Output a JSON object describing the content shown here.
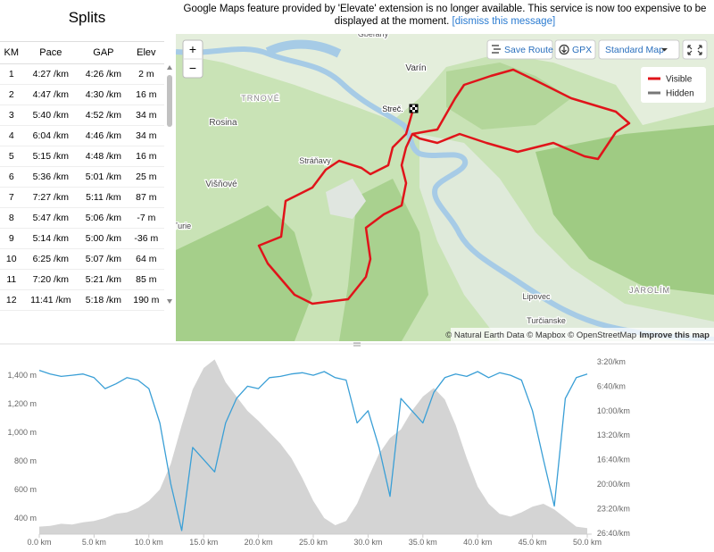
{
  "splits": {
    "title": "Splits",
    "columns": [
      "KM",
      "Pace",
      "GAP",
      "Elev"
    ],
    "rows": [
      [
        "1",
        "4:27 /km",
        "4:26 /km",
        "2 m"
      ],
      [
        "2",
        "4:47 /km",
        "4:30 /km",
        "16 m"
      ],
      [
        "3",
        "5:40 /km",
        "4:52 /km",
        "34 m"
      ],
      [
        "4",
        "6:04 /km",
        "4:46 /km",
        "34 m"
      ],
      [
        "5",
        "5:15 /km",
        "4:48 /km",
        "16 m"
      ],
      [
        "6",
        "5:36 /km",
        "5:01 /km",
        "25 m"
      ],
      [
        "7",
        "7:27 /km",
        "5:11 /km",
        "87 m"
      ],
      [
        "8",
        "5:47 /km",
        "5:06 /km",
        "-7 m"
      ],
      [
        "9",
        "5:14 /km",
        "5:00 /km",
        "-36 m"
      ],
      [
        "10",
        "6:25 /km",
        "5:07 /km",
        "64 m"
      ],
      [
        "11",
        "7:20 /km",
        "5:21 /km",
        "85 m"
      ],
      [
        "12",
        "11:41 /km",
        "5:18 /km",
        "190 m"
      ]
    ]
  },
  "banner": {
    "message": "Google Maps feature provided by 'Elevate' extension is no longer available. This service is now too expensive to be displayed at the moment.",
    "link": "[dismiss this message]"
  },
  "map": {
    "zoom_in": "+",
    "zoom_out": "−",
    "save_route": "Save Route",
    "gpx": "GPX",
    "style": "Standard Map",
    "legend": [
      {
        "name": "Visible",
        "color": "#e0141a"
      },
      {
        "name": "Hidden",
        "color": "#777777"
      }
    ],
    "places": [
      "Gbeľany",
      "Varín",
      "TRNOVÉ",
      "Rosina",
      "Streč.",
      "Stráňavy",
      "Višňové",
      "Turie",
      "Lipovec",
      "Turčianske",
      "JAROLÍM"
    ],
    "attribution": "© Natural Earth Data © Mapbox © OpenStreetMap",
    "attribution_link": "Improve this map"
  },
  "chart_data": {
    "type": "area_line",
    "x": [
      0,
      1,
      2,
      3,
      4,
      5,
      6,
      7,
      8,
      9,
      10,
      11,
      12,
      13,
      14,
      15,
      16,
      17,
      18,
      19,
      20,
      21,
      22,
      23,
      24,
      25,
      26,
      27,
      28,
      29,
      30,
      31,
      32,
      33,
      34,
      35,
      36,
      37,
      38,
      39,
      40,
      41,
      42,
      43,
      44,
      45,
      46,
      47,
      48,
      49,
      50
    ],
    "series": [
      {
        "style": "area",
        "color": "#d4d4d4",
        "values": [
          340,
          345,
          360,
          355,
          370,
          380,
          400,
          430,
          440,
          470,
          520,
          600,
          780,
          1050,
          1300,
          1450,
          1510,
          1350,
          1250,
          1150,
          1080,
          1000,
          920,
          820,
          680,
          520,
          400,
          350,
          380,
          500,
          680,
          850,
          960,
          1020,
          1150,
          1250,
          1310,
          1230,
          1050,
          820,
          620,
          500,
          430,
          410,
          440,
          480,
          500,
          460,
          400,
          340,
          330
        ]
      },
      {
        "style": "line",
        "color": "#3a9fd6",
        "axis": "y2",
        "values": [
          270,
          300,
          320,
          310,
          300,
          330,
          420,
          380,
          330,
          350,
          420,
          700,
          1200,
          1580,
          900,
          1000,
          1100,
          700,
          500,
          400,
          420,
          330,
          320,
          300,
          290,
          310,
          280,
          330,
          350,
          700,
          600,
          900,
          1300,
          500,
          600,
          700,
          450,
          330,
          300,
          320,
          280,
          330,
          290,
          310,
          350,
          600,
          1000,
          1380,
          500,
          330,
          300
        ]
      }
    ],
    "xlim": [
      0,
      50.4
    ],
    "xticks": [
      {
        "value": 0,
        "label": "0.0 km"
      },
      {
        "value": 5,
        "label": "5.0 km"
      },
      {
        "value": 10,
        "label": "10.0 km"
      },
      {
        "value": 15,
        "label": "15.0 km"
      },
      {
        "value": 20,
        "label": "20.0 km"
      },
      {
        "value": 25,
        "label": "25.0 km"
      },
      {
        "value": 30,
        "label": "30.0 km"
      },
      {
        "value": 35,
        "label": "35.0 km"
      },
      {
        "value": 40,
        "label": "40.0 km"
      },
      {
        "value": 45,
        "label": "45.0 km"
      },
      {
        "value": 50,
        "label": "50.0 km"
      }
    ],
    "ylim": [
      287.5,
      1525
    ],
    "yticks": [
      {
        "value": 400,
        "label": "400 m"
      },
      {
        "value": 600,
        "label": "600 m"
      },
      {
        "value": 800,
        "label": "800 m"
      },
      {
        "value": 1000,
        "label": "1,000 m"
      },
      {
        "value": 1200,
        "label": "1,200 m"
      },
      {
        "value": 1400,
        "label": "1,400 m"
      }
    ],
    "y2lim": [
      163.5,
      1609
    ],
    "y2_inverted": true,
    "y2ticks": [
      {
        "value": 200,
        "label": "3:20/km"
      },
      {
        "value": 400,
        "label": "6:40/km"
      },
      {
        "value": 600,
        "label": "10:00/km"
      },
      {
        "value": 800,
        "label": "13:20/km"
      },
      {
        "value": 1000,
        "label": "16:40/km"
      },
      {
        "value": 1200,
        "label": "20:00/km"
      },
      {
        "value": 1400,
        "label": "23:20/km"
      },
      {
        "value": 1600,
        "label": "26:40/km"
      }
    ],
    "grid": false
  }
}
